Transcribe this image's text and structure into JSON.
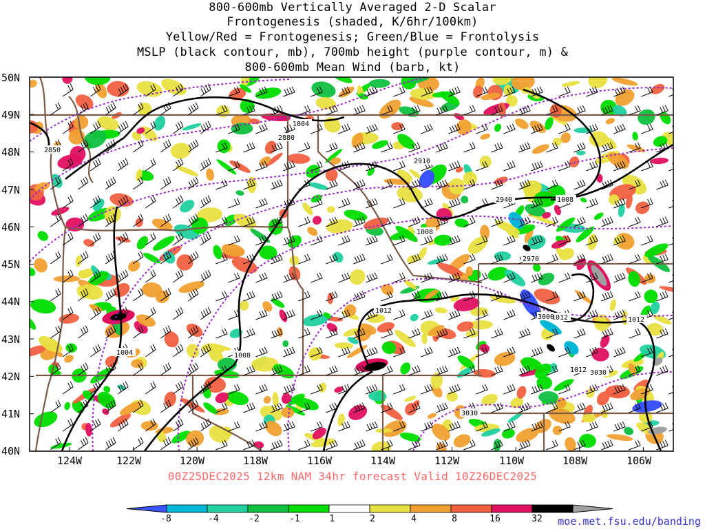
{
  "title": {
    "lines": [
      "800-600mb Vertically Averaged 2-D Scalar",
      "Frontogenesis (shaded, K/6hr/100km)",
      "Yellow/Red = Frontogenesis;  Green/Blue = Frontolysis",
      "MSLP (black contour, mb), 700mb height (purple contour, m) &",
      "800-600mb Mean Wind (barb, kt)"
    ]
  },
  "axes": {
    "lat_labels": [
      "50N",
      "49N",
      "48N",
      "47N",
      "46N",
      "45N",
      "44N",
      "43N",
      "42N",
      "41N",
      "40N"
    ],
    "lon_labels": [
      "124W",
      "122W",
      "120W",
      "118W",
      "116W",
      "114W",
      "112W",
      "110W",
      "108W",
      "106W"
    ]
  },
  "contour_labels": {
    "mslp": [
      "1004",
      "1004",
      "1008",
      "1008",
      "1008",
      "1012",
      "1012",
      "1012",
      "1012"
    ],
    "height": [
      "2850",
      "2880",
      "2910",
      "2940",
      "2970",
      "3000",
      "3030",
      "3030"
    ]
  },
  "footer": "00Z25DEC2025 12km NAM 34hr forecast Valid 10Z26DEC2025",
  "colorbar": {
    "labels": [
      "-8",
      "-4",
      "-2",
      "-1",
      "1",
      "2",
      "4",
      "8",
      "16",
      "32"
    ],
    "colors": [
      "#3a55ff",
      "#00b8d6",
      "#20d0a0",
      "#10c040",
      "#00dd00",
      "#ffffff",
      "#e8e040",
      "#f0a030",
      "#f06040",
      "#e01060",
      "#000000",
      "#a0a0a0"
    ]
  },
  "credit": "moe.met.fsu.edu/banding",
  "colors": {
    "mslp": "#000000",
    "height": "#9a28c8",
    "borders": "#7a5a48",
    "footer": "#ff6666"
  }
}
